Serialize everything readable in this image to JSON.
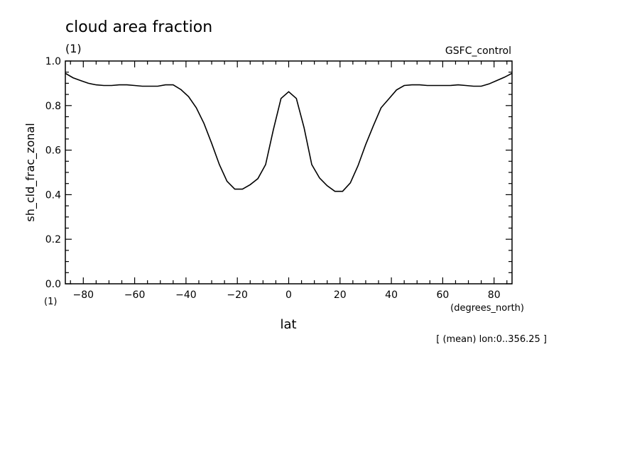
{
  "chart_data": {
    "type": "line",
    "title": "cloud area fraction",
    "y_units": "(1)",
    "x_units_label": "(1)",
    "dataset_label": "GSFC_control",
    "xlabel": "lat",
    "x_units": "(degrees_north)",
    "ylabel": "sh_cld_frac_zonal",
    "footnote": "[ (mean) lon:0..356.25 ]",
    "xlim": [
      -87,
      87
    ],
    "ylim": [
      0.0,
      1.0
    ],
    "x_ticks": [
      -80,
      -60,
      -40,
      -20,
      0,
      20,
      40,
      60,
      80
    ],
    "x_tick_labels": [
      "−80",
      "−60",
      "−40",
      "−20",
      "0",
      "20",
      "40",
      "60",
      "80"
    ],
    "y_ticks": [
      0.0,
      0.2,
      0.4,
      0.6,
      0.8,
      1.0
    ],
    "y_tick_labels": [
      "0.0",
      "0.2",
      "0.4",
      "0.6",
      "0.8",
      "1.0"
    ],
    "grid": false,
    "line_color": "#000000",
    "series": [
      {
        "x": [
          -87,
          -84,
          -81,
          -78,
          -75,
          -72,
          -69,
          -66,
          -63,
          -60,
          -57,
          -54,
          -51,
          -48,
          -45,
          -42,
          -39,
          -36,
          -33,
          -30,
          -27,
          -24,
          -21,
          -18,
          -15,
          -12,
          -9,
          -6,
          -3,
          0,
          3,
          6,
          9,
          12,
          15,
          18,
          21,
          24,
          27,
          30,
          33,
          36,
          39,
          42,
          45,
          48,
          51,
          54,
          57,
          60,
          63,
          66,
          69,
          72,
          75,
          78,
          81,
          84,
          87
        ],
        "y": [
          0.945,
          0.925,
          0.912,
          0.9,
          0.893,
          0.89,
          0.89,
          0.893,
          0.893,
          0.89,
          0.887,
          0.887,
          0.887,
          0.893,
          0.893,
          0.872,
          0.84,
          0.79,
          0.72,
          0.63,
          0.535,
          0.46,
          0.425,
          0.425,
          0.445,
          0.472,
          0.535,
          0.69,
          0.832,
          0.862,
          0.832,
          0.7,
          0.535,
          0.475,
          0.44,
          0.415,
          0.415,
          0.453,
          0.53,
          0.625,
          0.71,
          0.79,
          0.83,
          0.87,
          0.89,
          0.893,
          0.893,
          0.89,
          0.89,
          0.89,
          0.89,
          0.893,
          0.89,
          0.887,
          0.887,
          0.897,
          0.912,
          0.927,
          0.945
        ]
      }
    ]
  }
}
